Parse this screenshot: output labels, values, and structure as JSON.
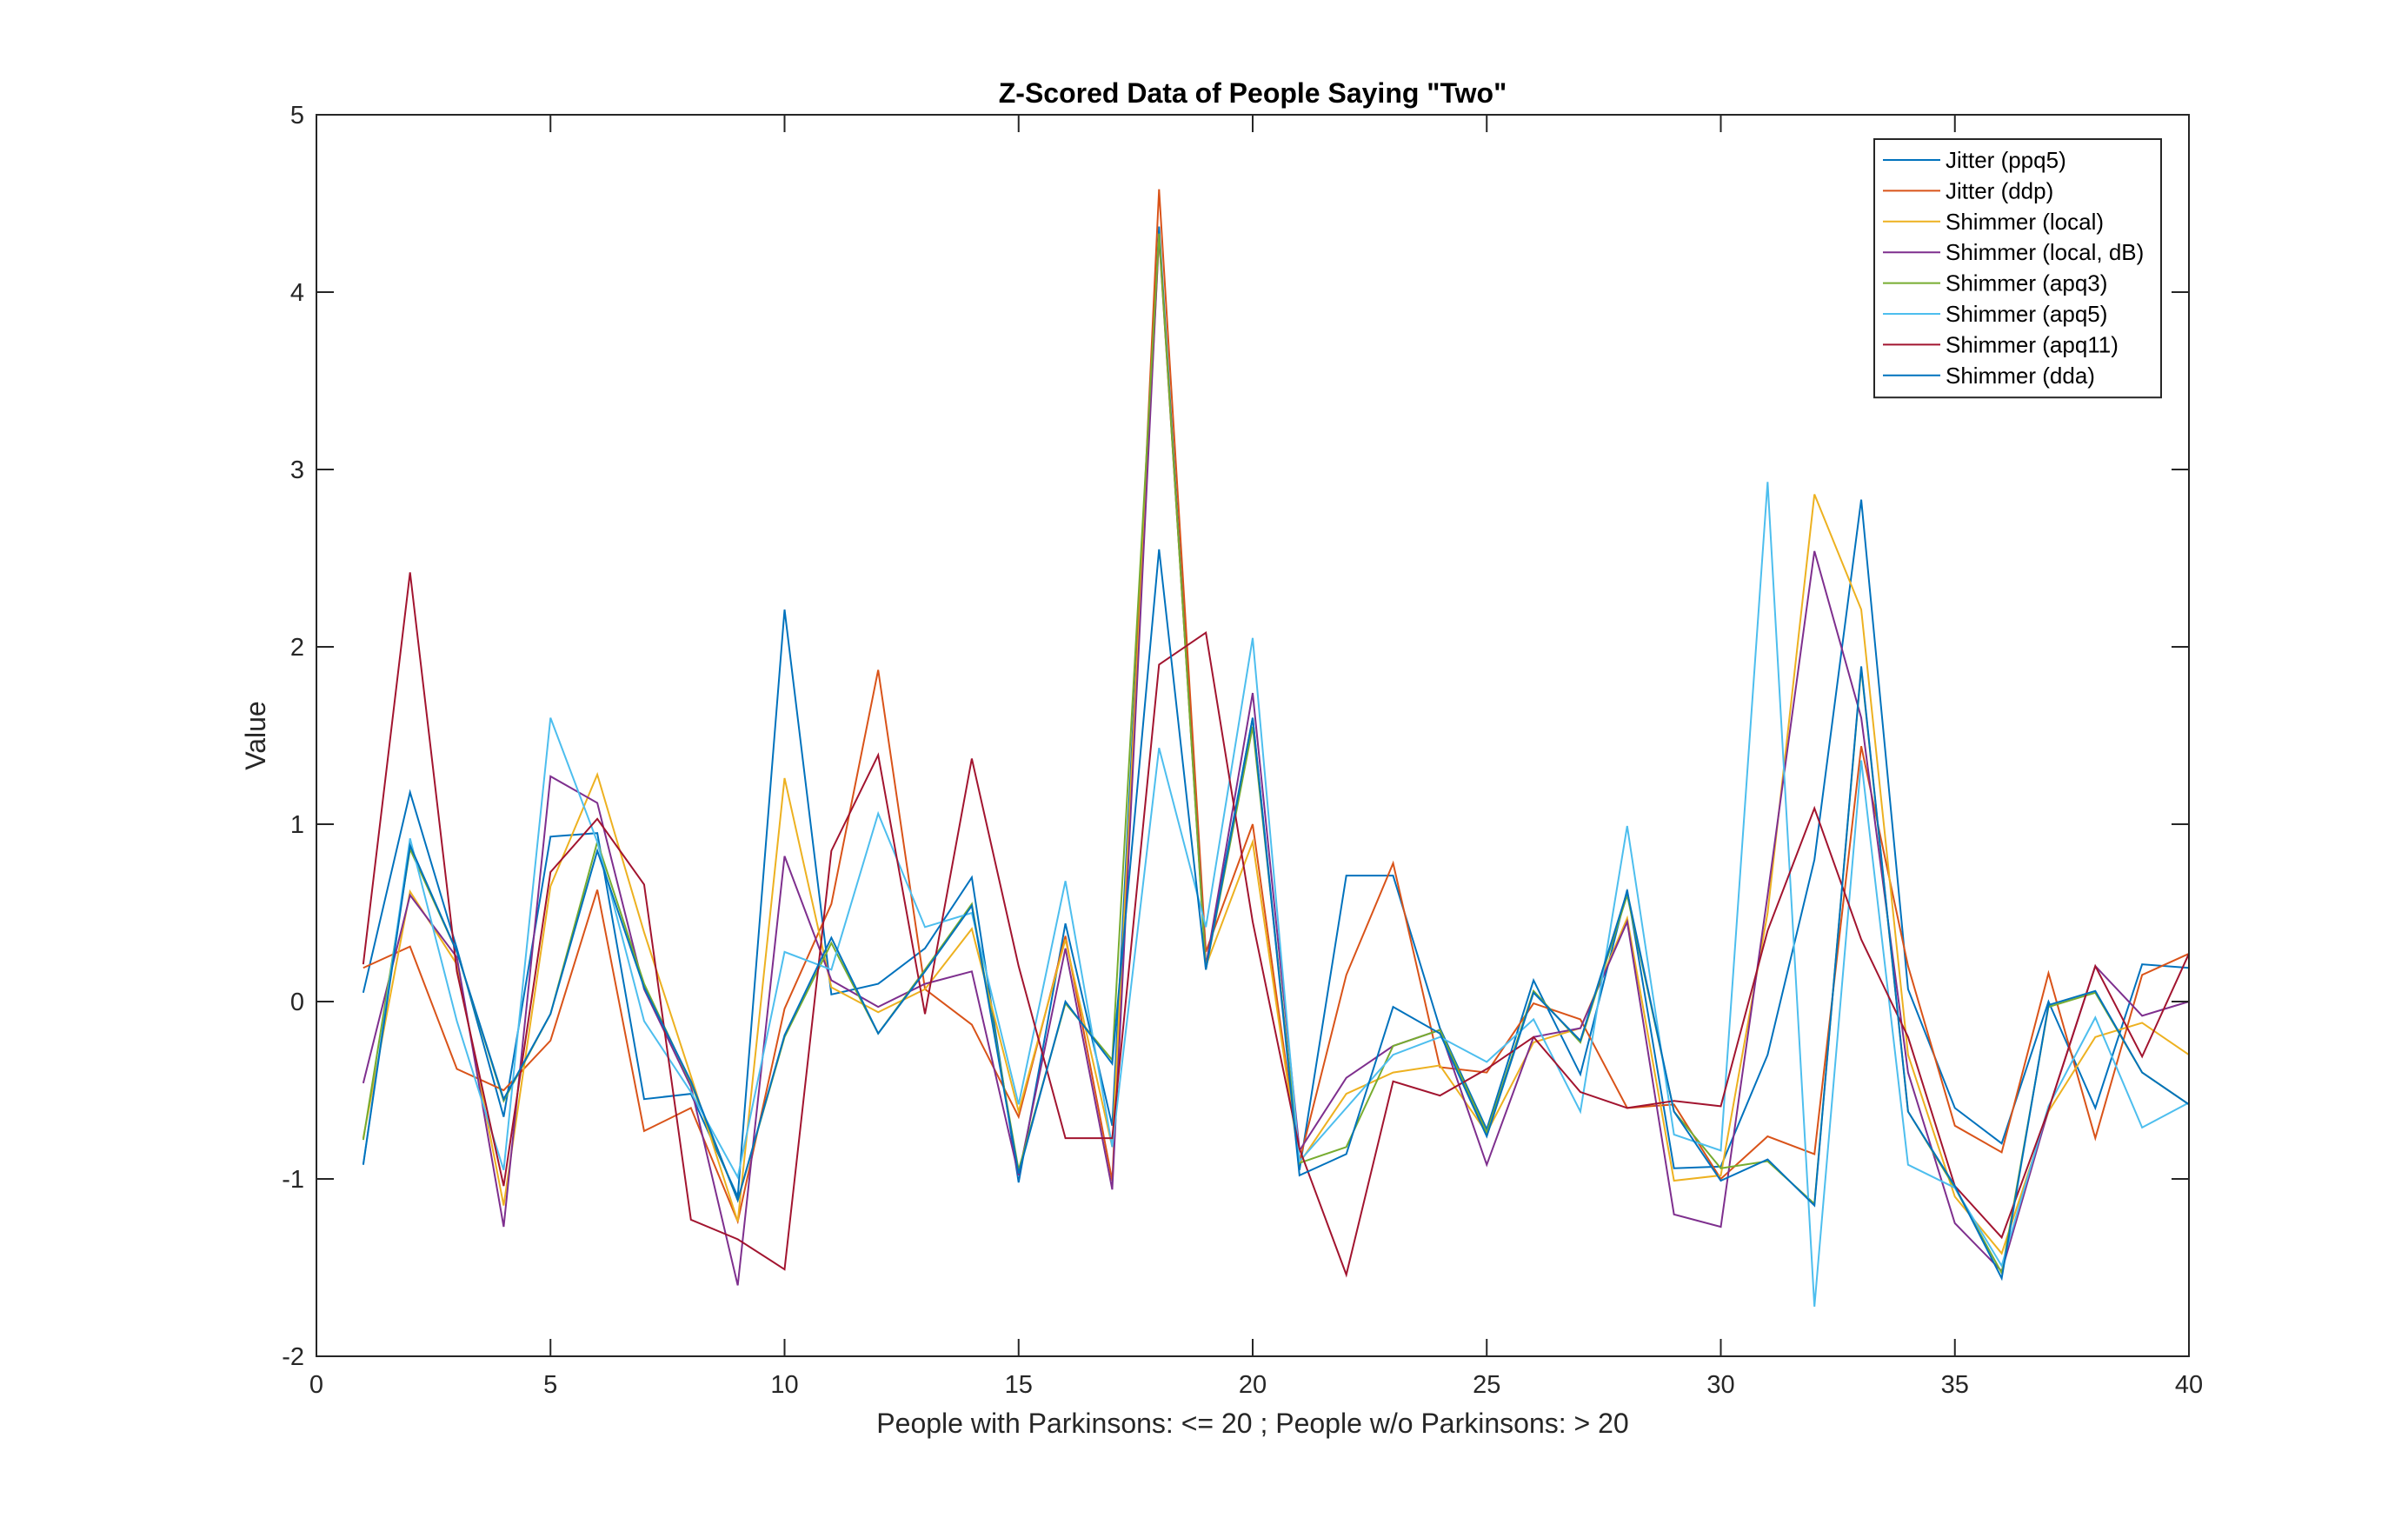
{
  "chart_data": {
    "type": "line",
    "title": "Z-Scored Data of People Saying \"Two\"",
    "xlabel": "People with Parkinsons: <= 20 ; People w/o Parkinsons: > 20",
    "ylabel": "Value",
    "xlim": [
      0,
      40
    ],
    "ylim": [
      -2,
      5
    ],
    "xticks": [
      0,
      5,
      10,
      15,
      20,
      25,
      30,
      35,
      40
    ],
    "yticks": [
      -2,
      -1,
      0,
      1,
      2,
      3,
      4,
      5
    ],
    "grid": false,
    "legend_position": "top-right",
    "x": [
      1,
      2,
      3,
      4,
      5,
      6,
      7,
      8,
      9,
      10,
      11,
      12,
      13,
      14,
      15,
      16,
      17,
      18,
      19,
      20,
      21,
      22,
      23,
      24,
      25,
      26,
      27,
      28,
      29,
      30,
      31,
      32,
      33,
      34,
      35,
      36,
      37,
      38,
      39,
      40
    ],
    "series": [
      {
        "name": "Jitter (ppq5)",
        "color": "#0072BD",
        "values": [
          0.05,
          1.18,
          0.3,
          -0.65,
          0.93,
          0.95,
          -0.55,
          -0.52,
          -1.1,
          2.21,
          0.04,
          0.1,
          0.3,
          0.7,
          -1.02,
          0.44,
          -0.7,
          4.37,
          0.2,
          1.6,
          -0.95,
          0.71,
          0.71,
          -0.15,
          -0.72,
          0.12,
          -0.41,
          0.63,
          -0.94,
          -0.93,
          -0.3,
          0.8,
          2.83,
          0.07,
          -0.6,
          -0.8,
          0.0,
          -0.6,
          0.21,
          0.19
        ]
      },
      {
        "name": "Jitter (ddp)",
        "color": "#D95319",
        "values": [
          0.19,
          0.31,
          -0.38,
          -0.5,
          -0.22,
          0.63,
          -0.73,
          -0.6,
          -1.24,
          -0.04,
          0.55,
          1.87,
          0.07,
          -0.13,
          -0.65,
          0.37,
          -1.01,
          4.58,
          0.28,
          1.0,
          -0.9,
          0.15,
          0.78,
          -0.37,
          -0.4,
          -0.01,
          -0.1,
          -0.6,
          -0.58,
          -1.0,
          -0.76,
          -0.86,
          1.44,
          0.2,
          -0.7,
          -0.85,
          0.16,
          -0.77,
          0.15,
          0.27
        ]
      },
      {
        "name": "Shimmer (local)",
        "color": "#EDB120",
        "values": [
          -0.77,
          0.62,
          0.21,
          -1.15,
          0.65,
          1.28,
          0.39,
          -0.42,
          -1.24,
          1.26,
          0.08,
          -0.06,
          0.07,
          0.41,
          -0.62,
          0.35,
          -0.82,
          4.31,
          0.2,
          0.9,
          -0.91,
          -0.52,
          -0.4,
          -0.36,
          -0.74,
          -0.23,
          -0.15,
          0.47,
          -1.01,
          -0.98,
          0.5,
          2.86,
          2.21,
          -0.3,
          -1.1,
          -1.42,
          -0.62,
          -0.2,
          -0.12,
          -0.3
        ]
      },
      {
        "name": "Shimmer (local, dB)",
        "color": "#7E2F8E",
        "values": [
          -0.46,
          0.6,
          0.25,
          -1.27,
          1.27,
          1.12,
          0.07,
          -0.48,
          -1.6,
          0.82,
          0.12,
          -0.03,
          0.1,
          0.17,
          -0.98,
          0.3,
          -1.06,
          4.32,
          0.2,
          1.74,
          -0.84,
          -0.43,
          -0.25,
          -0.16,
          -0.92,
          -0.2,
          -0.15,
          0.45,
          -1.2,
          -1.27,
          0.6,
          2.54,
          1.6,
          -0.4,
          -1.25,
          -1.52,
          -0.61,
          0.2,
          -0.08,
          0.0
        ]
      },
      {
        "name": "Shimmer (apq3)",
        "color": "#77AC30",
        "values": [
          -0.78,
          0.86,
          0.28,
          -0.56,
          -0.07,
          0.9,
          0.1,
          -0.46,
          -1.12,
          -0.2,
          0.33,
          -0.18,
          0.18,
          0.55,
          -0.95,
          -0.01,
          -0.33,
          4.33,
          0.18,
          1.55,
          -0.91,
          -0.82,
          -0.25,
          -0.16,
          -0.74,
          0.06,
          -0.23,
          0.6,
          -0.62,
          -0.94,
          -0.9,
          -1.14,
          1.88,
          -0.62,
          -1.05,
          -1.53,
          -0.03,
          0.05,
          -0.4,
          -0.58
        ]
      },
      {
        "name": "Shimmer (apq5)",
        "color": "#4DBEEE",
        "values": [
          -0.92,
          0.92,
          -0.11,
          -0.95,
          1.6,
          0.9,
          -0.11,
          -0.51,
          -0.99,
          0.28,
          0.18,
          1.06,
          0.42,
          0.5,
          -0.58,
          0.68,
          -0.82,
          1.43,
          0.42,
          2.05,
          -0.9,
          -0.6,
          -0.3,
          -0.2,
          -0.34,
          -0.1,
          -0.62,
          0.99,
          -0.75,
          -0.84,
          2.93,
          -1.72,
          1.36,
          -0.92,
          -1.05,
          -1.49,
          -0.59,
          -0.09,
          -0.71,
          -0.57
        ]
      },
      {
        "name": "Shimmer (apq11)",
        "color": "#A2142F",
        "values": [
          0.21,
          2.42,
          0.17,
          -1.04,
          0.73,
          1.03,
          0.66,
          -1.23,
          -1.34,
          -1.51,
          0.85,
          1.39,
          -0.07,
          1.37,
          0.2,
          -0.77,
          -0.77,
          1.9,
          2.08,
          0.45,
          -0.83,
          -1.54,
          -0.45,
          -0.53,
          -0.38,
          -0.2,
          -0.51,
          -0.6,
          -0.56,
          -0.59,
          0.4,
          1.09,
          0.35,
          -0.2,
          -1.04,
          -1.33,
          -0.61,
          0.2,
          -0.31,
          0.27
        ]
      },
      {
        "name": "Shimmer (dda)",
        "color": "#0072BD",
        "values": [
          -0.92,
          0.88,
          0.28,
          -0.55,
          -0.07,
          0.85,
          0.08,
          -0.45,
          -1.12,
          -0.19,
          0.36,
          -0.18,
          0.17,
          0.54,
          -0.97,
          0.0,
          -0.35,
          2.55,
          0.18,
          1.6,
          -0.98,
          -0.86,
          -0.03,
          -0.18,
          -0.76,
          0.05,
          -0.22,
          0.62,
          -0.62,
          -1.01,
          -0.89,
          -1.15,
          1.89,
          -0.62,
          -1.04,
          -1.56,
          -0.02,
          0.06,
          -0.4,
          -0.58
        ]
      }
    ]
  }
}
